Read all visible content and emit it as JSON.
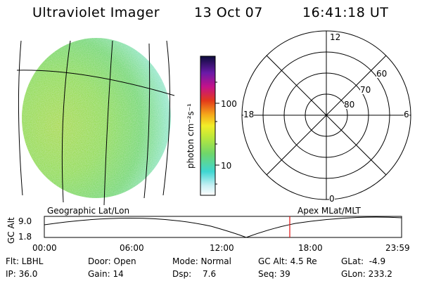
{
  "header": {
    "title": "Ultraviolet Imager",
    "date": "13 Oct 07",
    "time": "16:41:18 UT"
  },
  "colorbar": {
    "unit_label": "photon cm⁻²s⁻¹",
    "ticks": [
      "100",
      "10"
    ]
  },
  "polar_plot": {
    "mlt_labels": {
      "top": "12",
      "left": "18",
      "right": "6",
      "bottom": "0"
    },
    "lat_labels": [
      "60",
      "70",
      "80"
    ]
  },
  "altitude_panel": {
    "left_caption": "Geographic Lat/Lon",
    "right_caption": "Apex MLat/MLT",
    "axis_label": "GC Alt",
    "y_ticks": [
      "9.0",
      "1.8"
    ],
    "x_ticks": [
      "00:00",
      "06:00",
      "12:00",
      "18:00",
      "23:59"
    ],
    "marker_time": "16:41:18"
  },
  "info": {
    "flt": "Flt: LBHL",
    "door": "Door: Open",
    "mode": "Mode: Normal",
    "gc_alt": "GC Alt: 4.5 Re",
    "glat": "GLat:  -4.9",
    "ip": "IP: 36.0",
    "gain": "Gain: 14",
    "dsp_label": "Dsp:",
    "dsp_value": "7.6",
    "seq": "Seq: 39",
    "glon": "GLon: 233.2"
  },
  "colors": {
    "marker": "#e01010",
    "globe_main": "#7ed957",
    "globe_edge": "#b7eef0"
  }
}
